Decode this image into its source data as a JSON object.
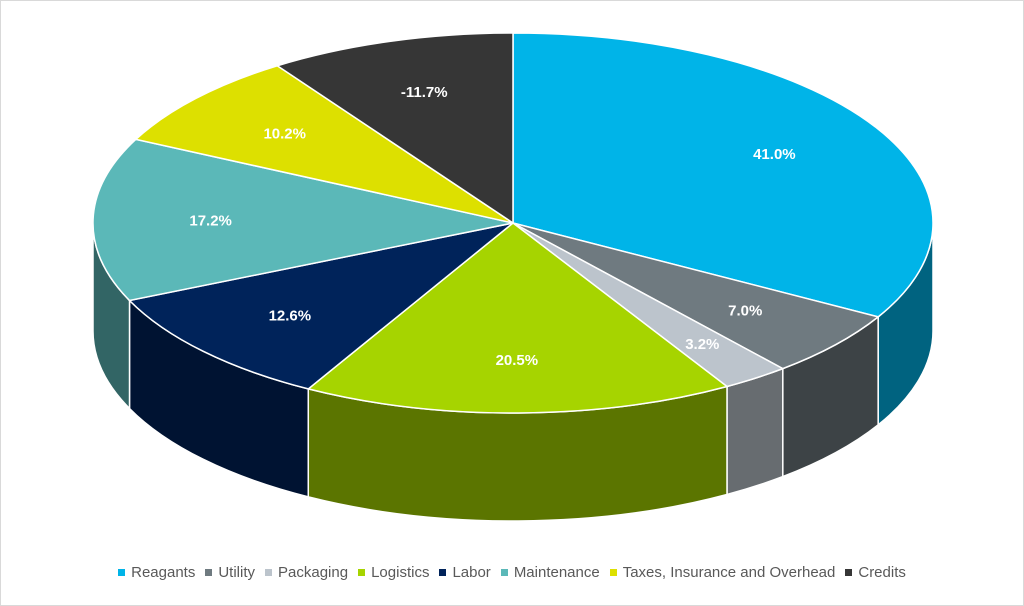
{
  "chart_data": {
    "type": "pie",
    "style": "3d",
    "categories": [
      "Reagants",
      "Utility",
      "Packaging",
      "Logistics",
      "Labor",
      "Maintenance",
      "Taxes, Insurance and Overhead",
      "Credits"
    ],
    "values": [
      41.0,
      7.0,
      3.2,
      20.5,
      12.6,
      17.2,
      10.2,
      -11.7
    ],
    "labels": [
      "41.0%",
      "7.0%",
      "3.2%",
      "20.5%",
      "12.6%",
      "17.2%",
      "10.2%",
      "-11.7%"
    ],
    "colors": [
      "#00b4e8",
      "#6f7a80",
      "#bcc4cc",
      "#a6d400",
      "#00235a",
      "#5bb8b8",
      "#dde000",
      "#363636"
    ],
    "legend_position": "bottom"
  }
}
